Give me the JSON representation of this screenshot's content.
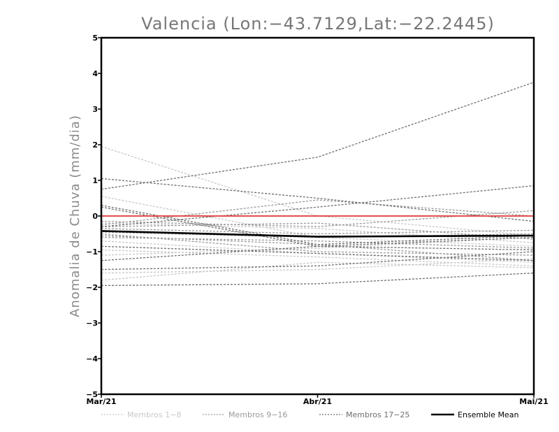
{
  "chart_data": {
    "type": "line",
    "title": "Valencia (Lon:-43.7129,Lat:-22.2445)",
    "xlabel": "",
    "ylabel": "Anomalia de Chuva (mm/dia)",
    "categories": [
      "Mar/21",
      "Abr/21",
      "Mai/21"
    ],
    "ylim": [
      -5,
      5
    ],
    "yticks": [
      -5,
      -4,
      -3,
      -2,
      -1,
      0,
      1,
      2,
      3,
      4,
      5
    ],
    "grid": false,
    "reference_line": {
      "value": 0,
      "color": "#e05050"
    },
    "groups": [
      {
        "name": "Membros 1-8",
        "color": "#c8c8c8",
        "dashed": true,
        "series": [
          [
            1.95,
            0.0,
            -0.55
          ],
          [
            0.55,
            -0.6,
            -0.85
          ],
          [
            -0.7,
            -1.05,
            -1.3
          ],
          [
            -0.95,
            -1.15,
            -1.4
          ],
          [
            -1.1,
            -0.9,
            -0.6
          ],
          [
            -1.6,
            -1.5,
            -1.2
          ],
          [
            -1.8,
            -1.3,
            -1.45
          ],
          [
            -0.2,
            -0.35,
            -0.75
          ]
        ]
      },
      {
        "name": "Membros 9-16",
        "color": "#9a9a9a",
        "dashed": true,
        "series": [
          [
            -0.15,
            -0.3,
            0.15
          ],
          [
            -0.25,
            0.45,
            0.0
          ],
          [
            -0.35,
            -0.5,
            -0.4
          ],
          [
            -0.45,
            -0.6,
            -0.5
          ],
          [
            -0.55,
            -0.8,
            -1.25
          ],
          [
            -0.3,
            -0.2,
            -0.65
          ],
          [
            -0.5,
            -1.0,
            -1.1
          ],
          [
            -0.6,
            -0.7,
            -0.9
          ]
        ]
      },
      {
        "name": "Membros 17-25",
        "color": "#6e6e6e",
        "dashed": true,
        "series": [
          [
            0.75,
            1.65,
            3.75
          ],
          [
            1.05,
            0.5,
            -0.15
          ],
          [
            0.3,
            -0.8,
            -0.55
          ],
          [
            0.25,
            -0.85,
            -0.6
          ],
          [
            -1.25,
            -0.85,
            -0.95
          ],
          [
            -1.5,
            -1.4,
            -1.0
          ],
          [
            -1.95,
            -1.9,
            -1.6
          ],
          [
            -0.85,
            -1.05,
            -1.25
          ],
          [
            -0.3,
            0.25,
            0.85
          ]
        ]
      }
    ],
    "ensemble_mean": {
      "name": "Ensemble Mean",
      "color": "#000000",
      "values": [
        -0.42,
        -0.58,
        -0.55
      ]
    },
    "legend": {
      "placement": "bottom",
      "items": [
        {
          "label": "Membros 1-8",
          "color": "#c8c8c8",
          "style": "dashed"
        },
        {
          "label": "Membros 9-16",
          "color": "#9a9a9a",
          "style": "dashed"
        },
        {
          "label": "Membros 17-25",
          "color": "#6e6e6e",
          "style": "dashed"
        },
        {
          "label": "Ensemble Mean",
          "color": "#000000",
          "style": "solid"
        }
      ]
    }
  }
}
